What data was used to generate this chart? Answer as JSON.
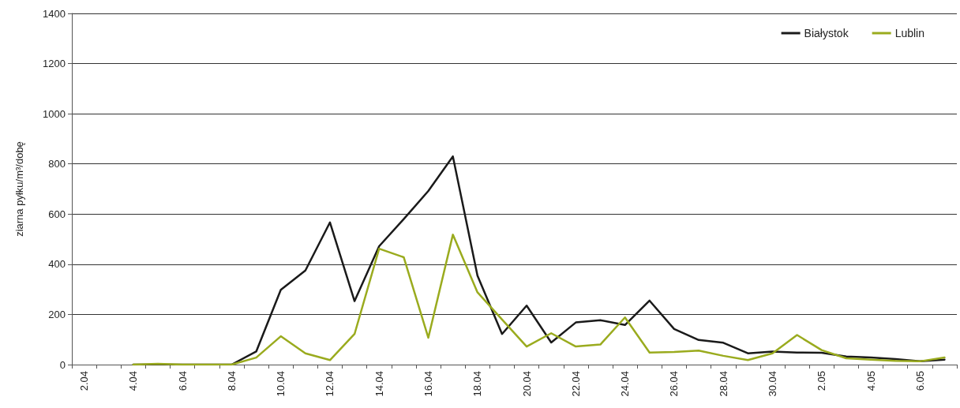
{
  "chart_data": {
    "type": "line",
    "ylabel": "ziarna pyłku/m³/dobę",
    "categories": [
      "2.04",
      null,
      "4.04",
      null,
      "6.04",
      null,
      "8.04",
      null,
      "10.04",
      null,
      "12.04",
      null,
      "14.04",
      null,
      "16.04",
      null,
      "18.04",
      null,
      "20.04",
      null,
      "22.04",
      null,
      "24.04",
      null,
      "26.04",
      null,
      "28.04",
      null,
      "30.04",
      null,
      "2.05",
      null,
      "4.05",
      null,
      "6.05",
      null
    ],
    "series": [
      {
        "name": "Białystok",
        "color": "#1a1a1a",
        "values": [
          null,
          null,
          0,
          0,
          0,
          0,
          0,
          52,
          298,
          375,
          567,
          253,
          472,
          580,
          692,
          830,
          355,
          122,
          235,
          88,
          168,
          177,
          158,
          255,
          142,
          98,
          87,
          45,
          52,
          48,
          47,
          32,
          28,
          22,
          13,
          20
        ]
      },
      {
        "name": "Lublin",
        "color": "#9aab1e",
        "values": [
          null,
          null,
          0,
          3,
          0,
          0,
          0,
          28,
          113,
          45,
          18,
          122,
          462,
          428,
          107,
          518,
          288,
          180,
          72,
          125,
          72,
          80,
          188,
          48,
          50,
          56,
          35,
          18,
          45,
          118,
          58,
          25,
          20,
          15,
          13,
          28
        ]
      }
    ],
    "ylim": [
      0,
      1400
    ],
    "yticks": [
      0,
      200,
      400,
      600,
      800,
      1000,
      1200,
      1400
    ],
    "grid": "y",
    "legend": "top right",
    "marker": "none",
    "line_style": "solid"
  }
}
